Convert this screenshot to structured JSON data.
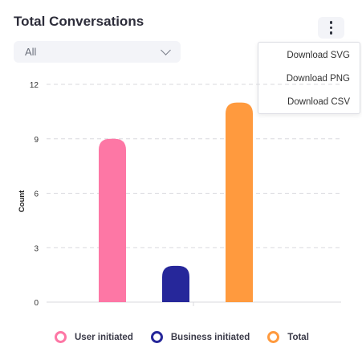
{
  "header": {
    "title": "Total Conversations"
  },
  "filter": {
    "selected": "All"
  },
  "menu": {
    "items": [
      "Download SVG",
      "Download PNG",
      "Download CSV"
    ]
  },
  "chart_data": {
    "type": "bar",
    "categories": [
      "User initiated",
      "Business initiated",
      "Total"
    ],
    "values": [
      9,
      2,
      11
    ],
    "colors": [
      "#fd77a5",
      "#26279a",
      "#ff9a3e"
    ],
    "ylabel": "Count",
    "ylim": [
      0,
      12
    ],
    "yticks": [
      0,
      3,
      6,
      9,
      12
    ],
    "grid": true,
    "legend": "bottom"
  }
}
